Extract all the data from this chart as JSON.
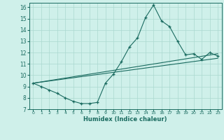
{
  "title": "",
  "xlabel": "Humidex (Indice chaleur)",
  "ylabel": "",
  "bg_color": "#cff0ea",
  "grid_color": "#aad8d0",
  "line_color": "#1a6b60",
  "xlim": [
    -0.5,
    23.5
  ],
  "ylim": [
    7,
    16.4
  ],
  "xticks": [
    0,
    1,
    2,
    3,
    4,
    5,
    6,
    7,
    8,
    9,
    10,
    11,
    12,
    13,
    14,
    15,
    16,
    17,
    18,
    19,
    20,
    21,
    22,
    23
  ],
  "yticks": [
    7,
    8,
    9,
    10,
    11,
    12,
    13,
    14,
    15,
    16
  ],
  "series1_x": [
    0,
    1,
    2,
    3,
    4,
    5,
    6,
    7,
    8,
    9,
    10,
    11,
    12,
    13,
    14,
    15,
    16,
    17,
    18,
    19,
    20,
    21,
    22,
    23
  ],
  "series1_y": [
    9.3,
    9.0,
    8.7,
    8.4,
    8.0,
    7.7,
    7.5,
    7.5,
    7.6,
    9.3,
    10.1,
    11.2,
    12.5,
    13.3,
    15.1,
    16.2,
    14.8,
    14.3,
    13.0,
    11.8,
    11.9,
    11.4,
    12.0,
    11.7
  ],
  "series2_x": [
    0,
    23
  ],
  "series2_y": [
    9.3,
    11.5
  ],
  "series3_x": [
    0,
    23
  ],
  "series3_y": [
    9.3,
    11.9
  ]
}
